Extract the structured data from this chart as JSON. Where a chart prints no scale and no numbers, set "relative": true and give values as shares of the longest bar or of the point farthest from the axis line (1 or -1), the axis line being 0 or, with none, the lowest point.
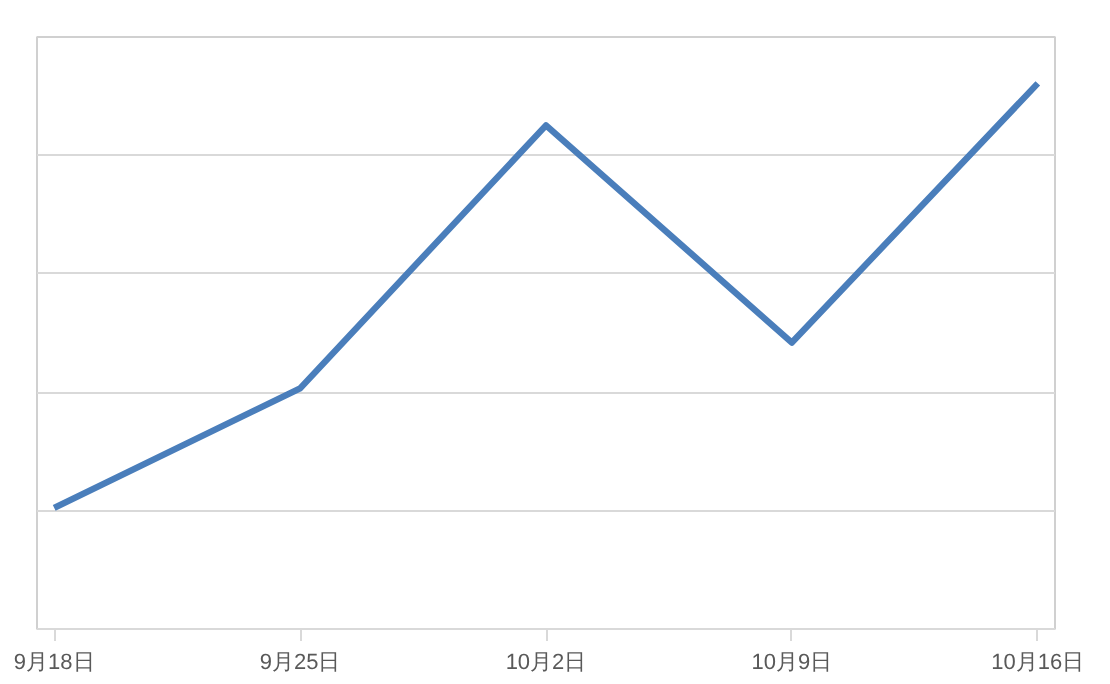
{
  "chart_data": {
    "type": "line",
    "relative": true,
    "categories": [
      "9月18日",
      "9月25日",
      "10月2日",
      "10月9日",
      "10月16日"
    ],
    "series": [
      {
        "color": "#4a7ebb",
        "values": [
          0.222,
          0.441,
          0.923,
          0.525,
          1
        ]
      }
    ],
    "grid": "y",
    "marker": "none",
    "line_style": "solid"
  }
}
